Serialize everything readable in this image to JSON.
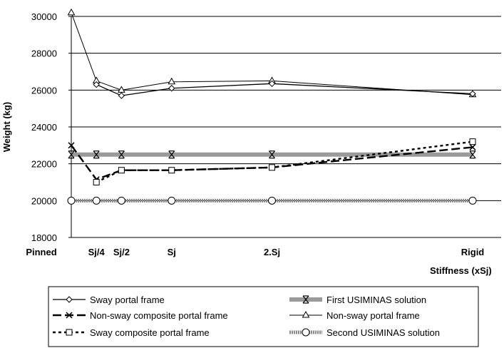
{
  "chart_data": {
    "type": "line",
    "ylabel": "Weight (kg)",
    "xlabel": "Stiffness (xSj)",
    "ylim": [
      18000,
      30000
    ],
    "yticks": [
      18000,
      20000,
      22000,
      24000,
      26000,
      28000,
      30000
    ],
    "ytick_labels": [
      "18000",
      "20000",
      "22000",
      "24000",
      "26000",
      "28000",
      "30000"
    ],
    "grid": true,
    "x_categories": [
      "Pinned",
      "Sj/4",
      "Sj/2",
      "Sj",
      "2.Sj",
      "Rigid"
    ],
    "x_positions": [
      0,
      0.25,
      0.5,
      1,
      2,
      4
    ],
    "legend_position": "bottom",
    "series": [
      {
        "name": "Sway portal frame",
        "marker": "diamond",
        "dash": "solid",
        "x": [
          0.25,
          0.5,
          1,
          2,
          4
        ],
        "y": [
          26300,
          25700,
          26100,
          26350,
          25800
        ]
      },
      {
        "name": "Non-sway composite portal frame",
        "marker": "cross",
        "dash": "longdash",
        "x": [
          0,
          0.25,
          0.5,
          1,
          2,
          4
        ],
        "y": [
          23000,
          21150,
          21650,
          21650,
          21800,
          22900
        ]
      },
      {
        "name": "Sway composite portal frame",
        "marker": "square",
        "dash": "dotted",
        "x": [
          0.25,
          0.5,
          1,
          2,
          4
        ],
        "y": [
          21000,
          21650,
          21650,
          21800,
          23200
        ]
      },
      {
        "name": "First USIMINAS solution",
        "marker": "asterisk",
        "dash": "thick-gray",
        "x": [
          0,
          0.25,
          0.5,
          1,
          2,
          4
        ],
        "y": [
          22500,
          22500,
          22500,
          22500,
          22500,
          22500
        ]
      },
      {
        "name": "Non-sway portal frame",
        "marker": "triangle",
        "dash": "solid-thin",
        "x": [
          0,
          0.25,
          0.5,
          1,
          2,
          4
        ],
        "y": [
          30200,
          26500,
          26000,
          26450,
          26500,
          25750
        ]
      },
      {
        "name": "Second USIMINAS solution",
        "marker": "circle",
        "dash": "thick-gray-dotted",
        "x": [
          0,
          0.25,
          0.5,
          1,
          2,
          4
        ],
        "y": [
          20000,
          20000,
          20000,
          20000,
          20000,
          20000
        ]
      }
    ],
    "legend_rows": [
      [
        "Sway portal frame",
        "First USIMINAS solution"
      ],
      [
        "Non-sway composite portal frame",
        "Non-sway portal frame"
      ],
      [
        "Sway composite portal frame",
        "Second USIMINAS solution"
      ]
    ]
  }
}
